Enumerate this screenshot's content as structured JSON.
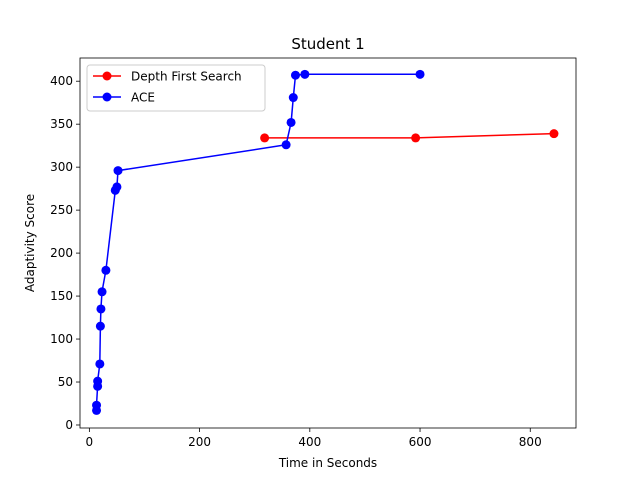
{
  "chart_data": {
    "type": "line",
    "title": "Student 1",
    "xlabel": "Time in Seconds",
    "ylabel": "Adaptivity Score",
    "xlim": [
      -17,
      883
    ],
    "ylim": [
      -3.5,
      427
    ],
    "xticks": [
      0,
      200,
      400,
      600,
      800
    ],
    "yticks": [
      0,
      50,
      100,
      150,
      200,
      250,
      300,
      350,
      400
    ],
    "grid": false,
    "legend_position": "upper-left",
    "series": [
      {
        "name": "Depth First Search",
        "color": "#ff0000",
        "marker": "circle",
        "points": [
          [
            318,
            334
          ],
          [
            592,
            334
          ],
          [
            843,
            339
          ]
        ]
      },
      {
        "name": "ACE",
        "color": "#0000ff",
        "marker": "circle",
        "points": [
          [
            13,
            17
          ],
          [
            13,
            23
          ],
          [
            15,
            45
          ],
          [
            15,
            51
          ],
          [
            19,
            71
          ],
          [
            20,
            115
          ],
          [
            21,
            135
          ],
          [
            23,
            155
          ],
          [
            30,
            180
          ],
          [
            47,
            273
          ],
          [
            50,
            277
          ],
          [
            52,
            296
          ],
          [
            357,
            326
          ],
          [
            366,
            352
          ],
          [
            370,
            381
          ],
          [
            374,
            407
          ],
          [
            391,
            408
          ],
          [
            600,
            408
          ]
        ]
      }
    ]
  }
}
